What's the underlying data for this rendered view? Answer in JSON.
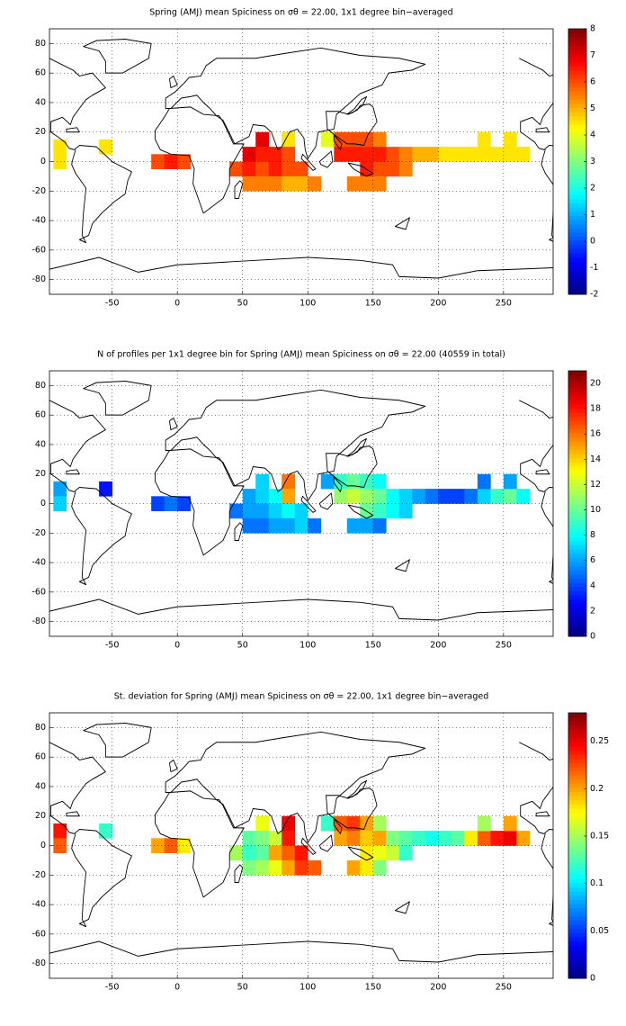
{
  "chart_data": [
    {
      "type": "heatmap",
      "title": "Spring (AMJ) mean Spiciness on σθ = 22.00, 1x1 degree bin−averaged",
      "xlim": [
        -98,
        288
      ],
      "ylim": [
        -90,
        90
      ],
      "clim": [
        -2,
        8
      ],
      "xticks": [
        -50,
        0,
        50,
        100,
        150,
        200,
        250
      ],
      "yticks": [
        -80,
        -60,
        -40,
        -20,
        0,
        20,
        40,
        60,
        80
      ],
      "cticks": [
        -2,
        -1,
        0,
        1,
        2,
        3,
        4,
        5,
        6,
        7,
        8
      ],
      "grid": true,
      "colormap": "jet",
      "x": [
        -90,
        -90,
        -55,
        -15,
        -5,
        5,
        45,
        55,
        65,
        65,
        55,
        65,
        75,
        75,
        85,
        85,
        85,
        95,
        55,
        65,
        75,
        85,
        95,
        105,
        115,
        125,
        125,
        135,
        135,
        145,
        145,
        145,
        155,
        155,
        155,
        165,
        165,
        175,
        175,
        185,
        195,
        205,
        215,
        225,
        235,
        245,
        255,
        265,
        235,
        255,
        135,
        145,
        155
      ],
      "y": [
        10,
        0,
        10,
        0,
        0,
        0,
        -5,
        5,
        15,
        5,
        -5,
        -5,
        5,
        -5,
        15,
        5,
        -5,
        -5,
        -15,
        -15,
        -15,
        -15,
        -15,
        -15,
        15,
        15,
        5,
        15,
        5,
        15,
        5,
        -5,
        15,
        5,
        -5,
        5,
        -5,
        5,
        -5,
        5,
        5,
        5,
        5,
        5,
        5,
        5,
        5,
        5,
        15,
        15,
        -15,
        -15,
        -15
      ],
      "values": [
        4.5,
        4.5,
        4.5,
        6,
        6.5,
        6,
        6,
        7,
        7,
        6.5,
        6.5,
        6,
        6.5,
        6.5,
        4.5,
        6,
        6,
        6,
        5.5,
        5.5,
        5.5,
        5,
        5,
        5.5,
        4,
        6,
        6.5,
        6,
        6.5,
        6,
        6.5,
        6.5,
        5.5,
        6.5,
        6,
        6,
        6,
        5.5,
        5.5,
        5,
        5,
        4.5,
        4.5,
        4.5,
        4.5,
        4.5,
        4.5,
        4.5,
        4.5,
        4.5,
        5.5,
        5.5,
        5.5
      ]
    },
    {
      "type": "heatmap",
      "title": "N of profiles per 1x1 degree bin for Spring (AMJ) mean Spiciness on σθ = 22.00 (40559 in total)",
      "xlim": [
        -98,
        288
      ],
      "ylim": [
        -90,
        90
      ],
      "clim": [
        0,
        21
      ],
      "xticks": [
        -50,
        0,
        50,
        100,
        150,
        200,
        250
      ],
      "yticks": [
        -80,
        -60,
        -40,
        -20,
        0,
        20,
        40,
        60,
        80
      ],
      "cticks": [
        0,
        2,
        4,
        6,
        8,
        10,
        12,
        14,
        16,
        18,
        20
      ],
      "grid": true,
      "colormap": "jet",
      "x": [
        -90,
        -90,
        -55,
        -15,
        -5,
        5,
        45,
        55,
        65,
        65,
        55,
        65,
        75,
        75,
        85,
        85,
        85,
        95,
        55,
        65,
        75,
        85,
        95,
        105,
        115,
        125,
        125,
        135,
        135,
        145,
        145,
        145,
        155,
        155,
        155,
        165,
        165,
        175,
        175,
        185,
        195,
        205,
        215,
        225,
        235,
        245,
        255,
        265,
        235,
        255,
        135,
        145,
        155
      ],
      "y": [
        10,
        0,
        10,
        0,
        0,
        0,
        -5,
        5,
        15,
        5,
        -5,
        -5,
        5,
        -5,
        15,
        5,
        -5,
        -5,
        -15,
        -15,
        -15,
        -15,
        -15,
        -15,
        15,
        15,
        5,
        15,
        5,
        15,
        5,
        -5,
        15,
        5,
        -5,
        5,
        -5,
        5,
        -5,
        5,
        5,
        5,
        5,
        5,
        5,
        5,
        5,
        5,
        15,
        15,
        -15,
        -15,
        -15
      ],
      "values": [
        6,
        7,
        3,
        4,
        5,
        4,
        5,
        6,
        7,
        7,
        6,
        6,
        8,
        7,
        16,
        15,
        8,
        7,
        5,
        5,
        6,
        6,
        7,
        5,
        6,
        9,
        11,
        10,
        12,
        9,
        11,
        10,
        8,
        10,
        9,
        8,
        8,
        7,
        7,
        6,
        5,
        4,
        4,
        5,
        7,
        9,
        10,
        8,
        5,
        6,
        6,
        6,
        5
      ]
    },
    {
      "type": "heatmap",
      "title": "St. deviation for Spring (AMJ) mean Spiciness on σθ = 22.00, 1x1 degree bin−averaged",
      "xlim": [
        -98,
        288
      ],
      "ylim": [
        -90,
        90
      ],
      "clim": [
        0,
        0.28
      ],
      "xticks": [
        -50,
        0,
        50,
        100,
        150,
        200,
        250
      ],
      "yticks": [
        -80,
        -60,
        -40,
        -20,
        0,
        20,
        40,
        60,
        80
      ],
      "cticks": [
        0,
        0.05,
        0.1,
        0.15,
        0.2,
        0.25
      ],
      "grid": true,
      "colormap": "jet",
      "x": [
        -90,
        -90,
        -55,
        -15,
        -5,
        5,
        45,
        55,
        65,
        65,
        55,
        65,
        75,
        75,
        85,
        85,
        85,
        95,
        55,
        65,
        75,
        85,
        95,
        105,
        115,
        125,
        125,
        135,
        135,
        145,
        145,
        145,
        155,
        155,
        155,
        165,
        165,
        175,
        175,
        185,
        195,
        205,
        215,
        225,
        235,
        245,
        255,
        265,
        235,
        255,
        135,
        145,
        155
      ],
      "y": [
        10,
        0,
        10,
        0,
        0,
        0,
        -5,
        5,
        15,
        5,
        -5,
        -5,
        5,
        -5,
        15,
        5,
        -5,
        -5,
        -15,
        -15,
        -15,
        -15,
        -15,
        -15,
        15,
        15,
        5,
        15,
        5,
        15,
        5,
        -5,
        15,
        5,
        -5,
        5,
        -5,
        5,
        -5,
        5,
        5,
        5,
        5,
        5,
        5,
        5,
        5,
        5,
        15,
        15,
        -15,
        -15,
        -15
      ],
      "values": [
        0.24,
        0.22,
        0.12,
        0.2,
        0.22,
        0.18,
        0.15,
        0.13,
        0.17,
        0.14,
        0.12,
        0.13,
        0.16,
        0.2,
        0.25,
        0.24,
        0.22,
        0.24,
        0.14,
        0.15,
        0.17,
        0.2,
        0.23,
        0.22,
        0.12,
        0.22,
        0.2,
        0.23,
        0.21,
        0.2,
        0.19,
        0.18,
        0.15,
        0.2,
        0.17,
        0.14,
        0.16,
        0.13,
        0.12,
        0.12,
        0.11,
        0.12,
        0.13,
        0.18,
        0.22,
        0.24,
        0.25,
        0.2,
        0.15,
        0.2,
        0.2,
        0.18,
        0.14
      ]
    }
  ]
}
